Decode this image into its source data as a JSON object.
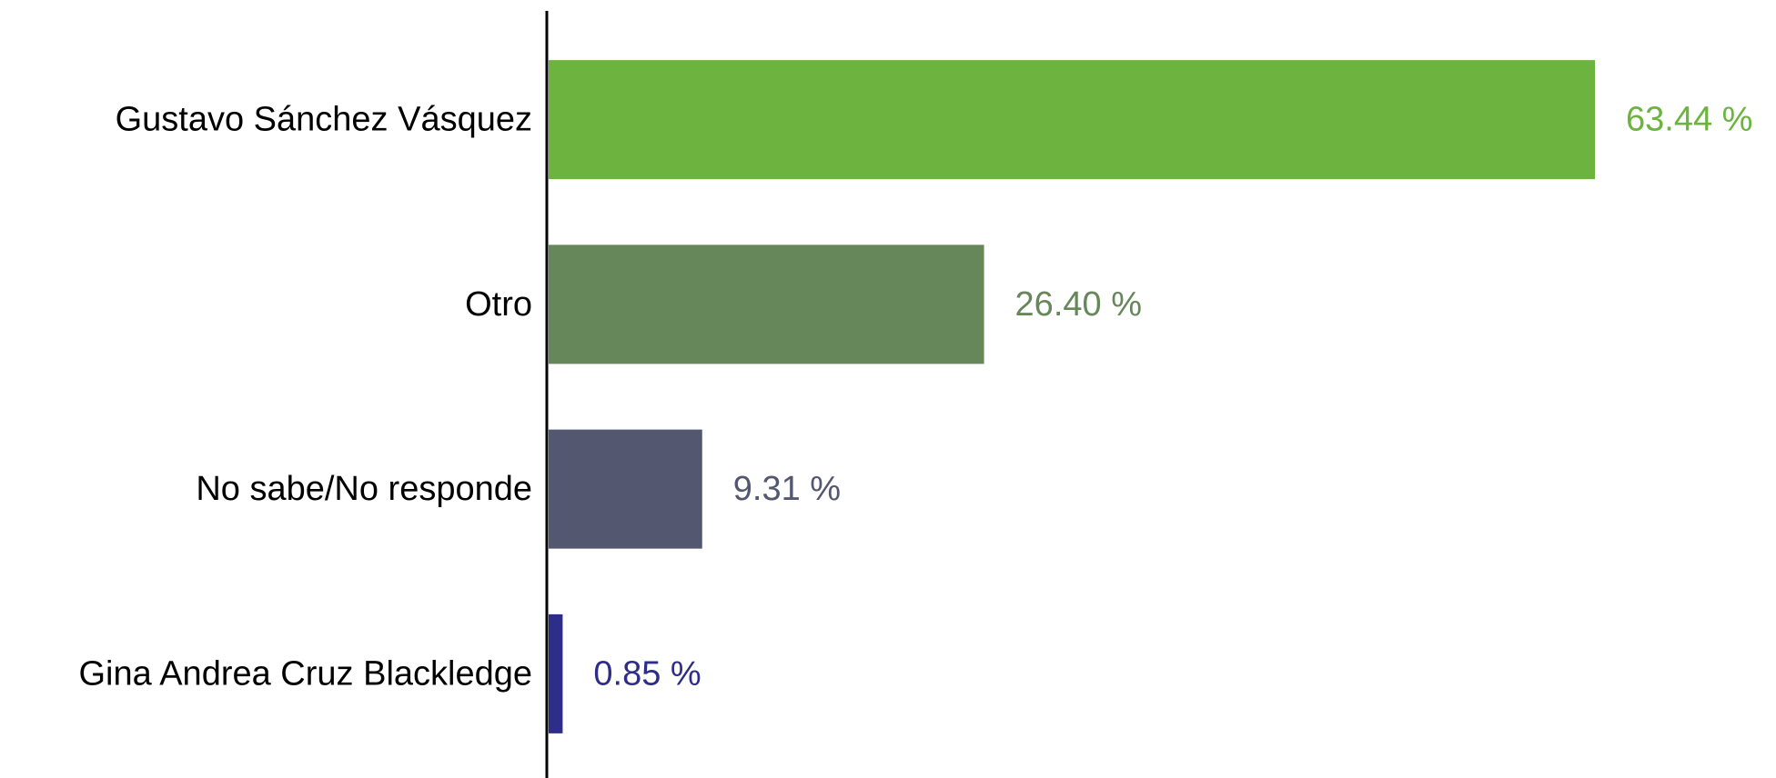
{
  "chart_data": {
    "type": "bar",
    "orientation": "horizontal",
    "categories": [
      "Gustavo Sánchez Vásquez",
      "Otro",
      "No sabe/No responde",
      "Gina Andrea Cruz Blackledge"
    ],
    "values": [
      63.44,
      26.4,
      9.31,
      0.85
    ],
    "value_labels": [
      "63.44 %",
      "26.40 %",
      "9.31 %",
      "0.85 %"
    ],
    "colors": [
      "#6db33f",
      "#66875a",
      "#535870",
      "#2e2e8a"
    ]
  }
}
